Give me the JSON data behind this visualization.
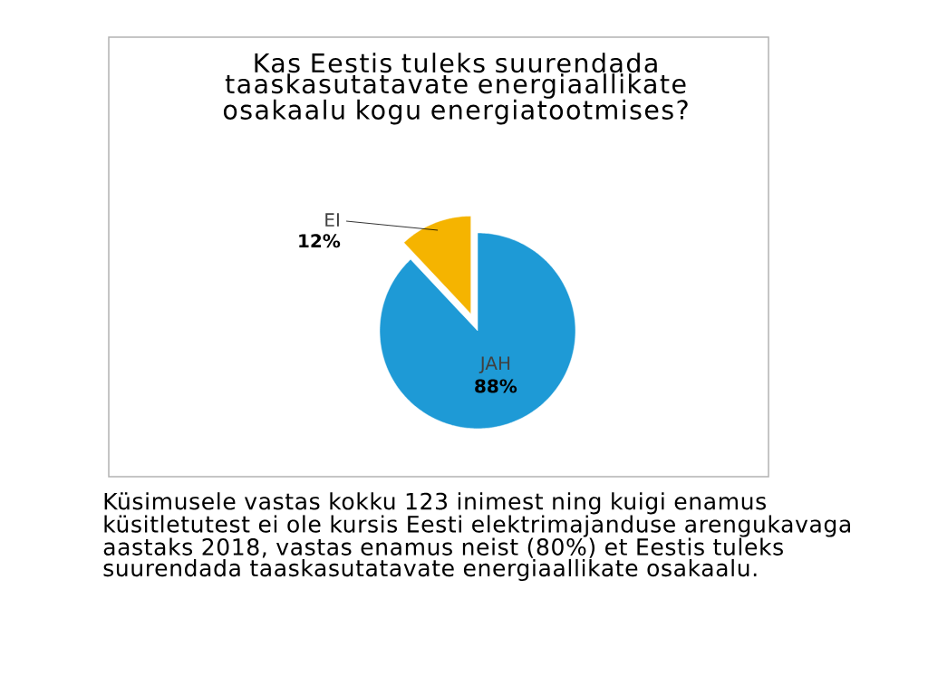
{
  "chart_data": {
    "type": "pie",
    "title": "Kas Eestis tuleks suurendada taaskasutatavate energiaallikate osakaalu kogu energiatootmises?",
    "categories": [
      "JAH",
      "EI"
    ],
    "values": [
      88,
      12
    ],
    "colors": [
      "#1e9ad6",
      "#f5b400"
    ],
    "value_labels": [
      "88%",
      "12%"
    ],
    "annotations": [
      "Küsimusele vastas kokku 123 inimest ning kuigi enamus küsitletutest ei ole kursis Eesti elektrimajanduse arengukavaga aastaks 2018, vastas enamus neist (80%) et Eestis tuleks suurendada taaskasutatavate energiaallikate osakaalu."
    ]
  }
}
